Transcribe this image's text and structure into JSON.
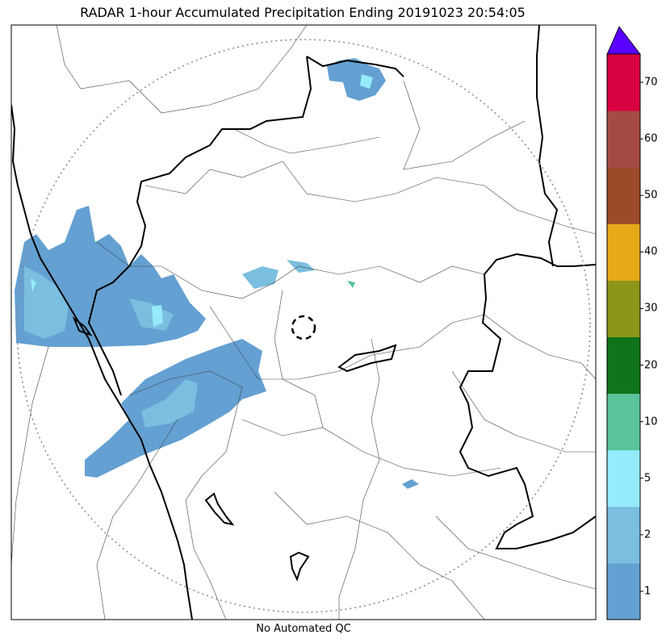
{
  "title": "RADAR 1-hour Accumulated Precipitation Ending 20191023 20:54:05",
  "footer_note": "No Automated QC",
  "colorbar": {
    "levels": [
      {
        "label": "",
        "color": "#64a0d2"
      },
      {
        "label": "1",
        "color": "#7abee0"
      },
      {
        "label": "2",
        "color": "#96ebfa"
      },
      {
        "label": "5",
        "color": "#5ac39b"
      },
      {
        "label": "10",
        "color": "#0f7319"
      },
      {
        "label": "20",
        "color": "#8c9619"
      },
      {
        "label": "30",
        "color": "#e6aa19"
      },
      {
        "label": "40",
        "color": "#9b4b28"
      },
      {
        "label": "50",
        "color": "#a54b46"
      },
      {
        "label": "60",
        "color": "#d70041"
      }
    ],
    "ticks": [
      "1",
      "2",
      "5",
      "10",
      "20",
      "30",
      "40",
      "50",
      "60",
      "70"
    ],
    "extend_color": "#5a00ff"
  },
  "colors": {
    "state_border": "#000000",
    "district_border": "#444444",
    "range_ring": "#888888",
    "radar_site": "#000000"
  }
}
